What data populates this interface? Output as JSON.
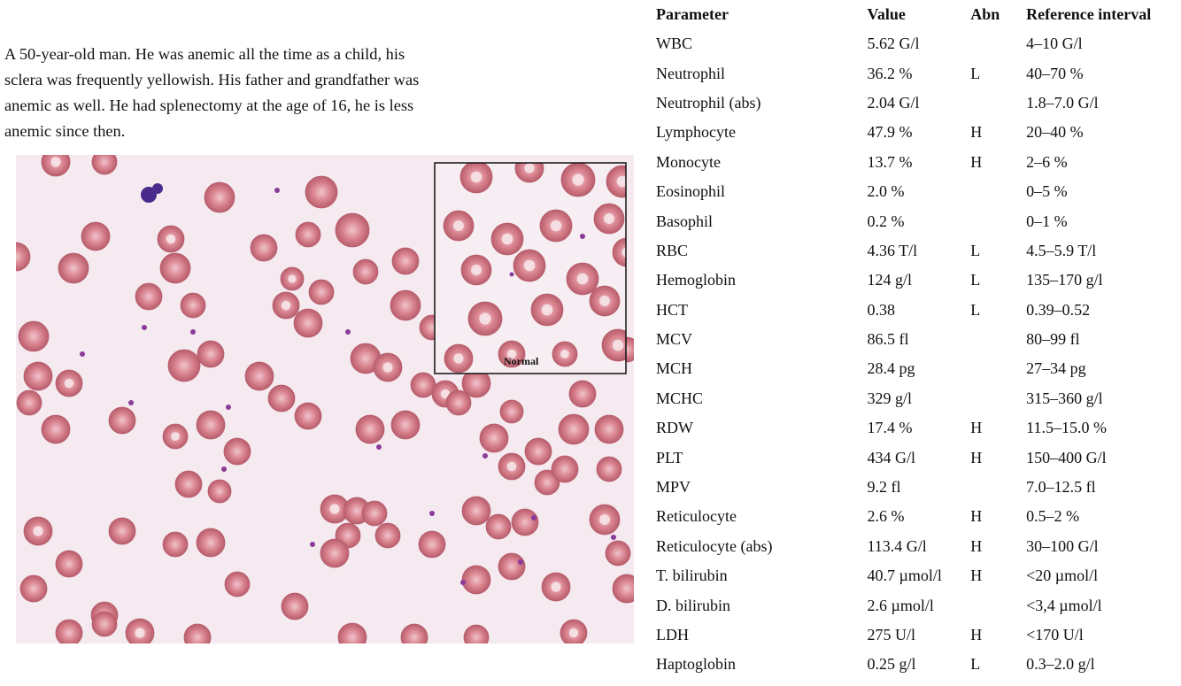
{
  "case": {
    "lines": [
      "A 50-year-old man. He was anemic all the time as a child, his",
      "sclera was frequently yellowish. His father and grandfather was",
      "anemic as well. He had splenectomy at the age of 16, he is less",
      "anemic since then."
    ]
  },
  "image": {
    "inset_label": "Normal",
    "colors": {
      "background": "#f4eaf0",
      "rbc_fill": "#d9838f",
      "rbc_edge": "#b85d6c",
      "rbc_center": "#f0c4cc",
      "platelet": "#8a3b9a",
      "leukocyte": "#4a2a8a",
      "inset_border": "#111111"
    }
  },
  "table": {
    "headers": {
      "parameter": "Parameter",
      "value": "Value",
      "abn": "Abn",
      "reference": "Reference interval"
    },
    "rows": [
      {
        "parameter": "WBC",
        "value": "5.62 G/l",
        "abn": "",
        "reference": "4–10 G/l"
      },
      {
        "parameter": "Neutrophil",
        "value": "36.2 %",
        "abn": "L",
        "reference": "40–70 %"
      },
      {
        "parameter": "Neutrophil (abs)",
        "value": "2.04 G/l",
        "abn": "",
        "reference": "1.8–7.0 G/l"
      },
      {
        "parameter": "Lymphocyte",
        "value": "47.9 %",
        "abn": "H",
        "reference": "20–40 %"
      },
      {
        "parameter": "Monocyte",
        "value": "13.7 %",
        "abn": "H",
        "reference": "2–6 %"
      },
      {
        "parameter": "Eosinophil",
        "value": "2.0 %",
        "abn": "",
        "reference": "0–5 %"
      },
      {
        "parameter": "Basophil",
        "value": "0.2 %",
        "abn": "",
        "reference": "0–1 %"
      },
      {
        "parameter": "RBC",
        "value": "4.36 T/l",
        "abn": "L",
        "reference": "4.5–5.9 T/l"
      },
      {
        "parameter": "Hemoglobin",
        "value": "124 g/l",
        "abn": "L",
        "reference": "135–170 g/l"
      },
      {
        "parameter": "HCT",
        "value": "0.38",
        "abn": "L",
        "reference": "0.39–0.52"
      },
      {
        "parameter": "MCV",
        "value": "86.5 fl",
        "abn": "",
        "reference": "80–99 fl"
      },
      {
        "parameter": "MCH",
        "value": "28.4 pg",
        "abn": "",
        "reference": "27–34 pg"
      },
      {
        "parameter": "MCHC",
        "value": "329 g/l",
        "abn": "",
        "reference": "315–360 g/l"
      },
      {
        "parameter": "RDW",
        "value": "17.4 %",
        "abn": "H",
        "reference": "11.5–15.0 %"
      },
      {
        "parameter": "PLT",
        "value": "434 G/l",
        "abn": "H",
        "reference": "150–400 G/l"
      },
      {
        "parameter": "MPV",
        "value": "9.2 fl",
        "abn": "",
        "reference": "7.0–12.5 fl"
      },
      {
        "parameter": "Reticulocyte",
        "value": "2.6 %",
        "abn": "H",
        "reference": "0.5–2 %"
      },
      {
        "parameter": "Reticulocyte (abs)",
        "value": "113.4 G/l",
        "abn": "H",
        "reference": "30–100 G/l"
      },
      {
        "parameter": "T. bilirubin",
        "value": "40.7 µmol/l",
        "abn": "H",
        "reference": "<20 µmol/l"
      },
      {
        "parameter": "D. bilirubin",
        "value": "2.6 µmol/l",
        "abn": "",
        "reference": "<3,4  µmol/l"
      },
      {
        "parameter": "LDH",
        "value": "275 U/l",
        "abn": "H",
        "reference": "<170 U/l"
      },
      {
        "parameter": "Haptoglobin",
        "value": "0.25 g/l",
        "abn": "L",
        "reference": "0.3–2.0 g/l"
      }
    ]
  }
}
